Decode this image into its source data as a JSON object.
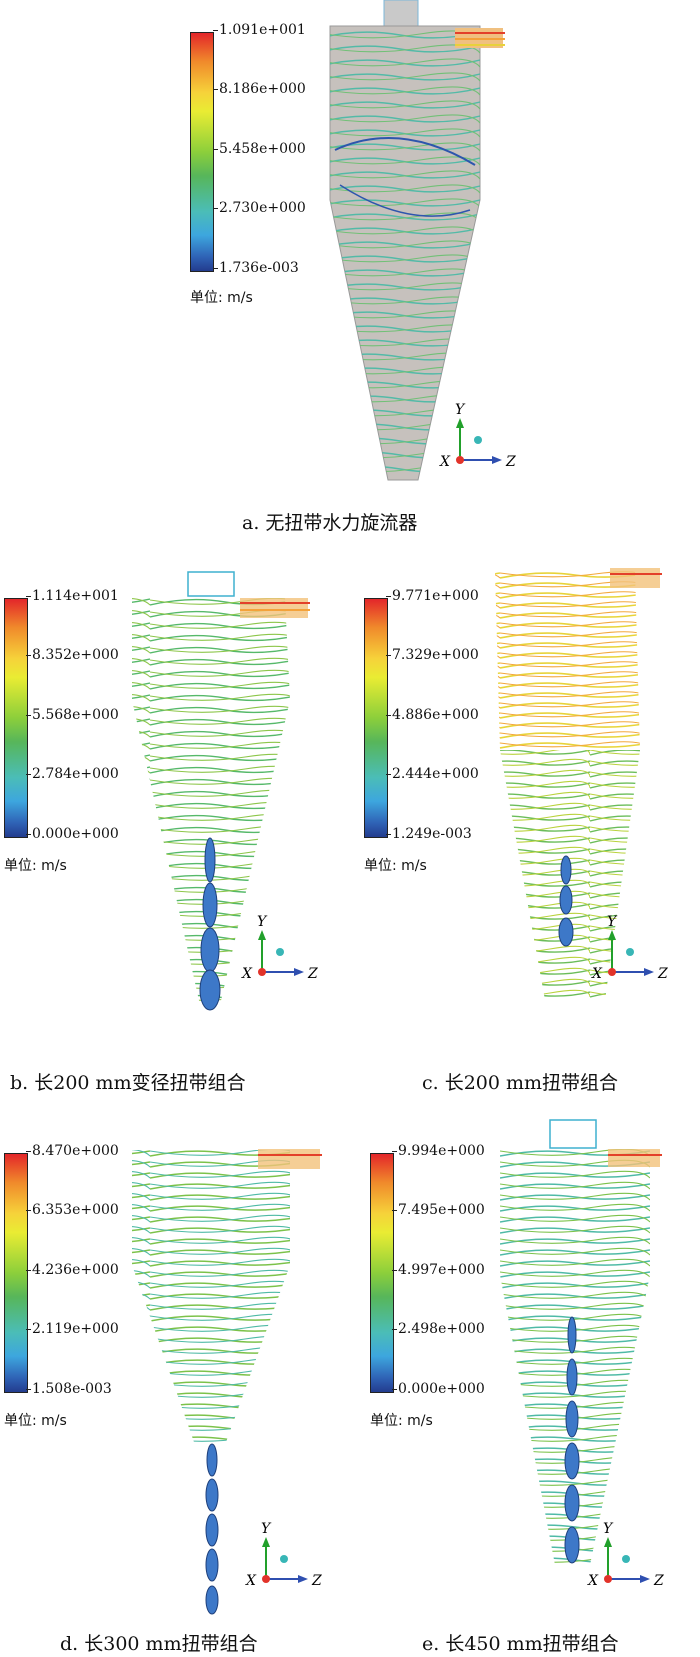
{
  "panels": [
    {
      "id": "a",
      "legend_values": [
        "1.091e+001",
        "8.186e+000",
        "5.458e+000",
        "2.730e+000",
        "1.736e-003"
      ],
      "unit_label": "单位: m/s",
      "caption": "a. 无扭带水力旋流器",
      "axis": {
        "y": "Y",
        "x": "X",
        "z": "Z"
      }
    },
    {
      "id": "b",
      "legend_values": [
        "1.114e+001",
        "8.352e+000",
        "5.568e+000",
        "2.784e+000",
        "0.000e+000"
      ],
      "unit_label": "单位: m/s",
      "caption": "b. 长200 mm变径扭带组合",
      "axis": {
        "y": "Y",
        "x": "X",
        "z": "Z"
      }
    },
    {
      "id": "c",
      "legend_values": [
        "9.771e+000",
        "7.329e+000",
        "4.886e+000",
        "2.444e+000",
        "1.249e-003"
      ],
      "unit_label": "单位: m/s",
      "caption": "c. 长200 mm扭带组合",
      "axis": {
        "y": "Y",
        "x": "X",
        "z": "Z"
      }
    },
    {
      "id": "d",
      "legend_values": [
        "8.470e+000",
        "6.353e+000",
        "4.236e+000",
        "2.119e+000",
        "1.508e-003"
      ],
      "unit_label": "单位: m/s",
      "caption": "d. 长300 mm扭带组合",
      "axis": {
        "y": "Y",
        "x": "X",
        "z": "Z"
      }
    },
    {
      "id": "e",
      "legend_values": [
        "9.994e+000",
        "7.495e+000",
        "4.997e+000",
        "2.498e+000",
        "0.000e+000"
      ],
      "unit_label": "单位: m/s",
      "caption": "e. 长450 mm扭带组合",
      "axis": {
        "y": "Y",
        "x": "X",
        "z": "Z"
      }
    }
  ]
}
